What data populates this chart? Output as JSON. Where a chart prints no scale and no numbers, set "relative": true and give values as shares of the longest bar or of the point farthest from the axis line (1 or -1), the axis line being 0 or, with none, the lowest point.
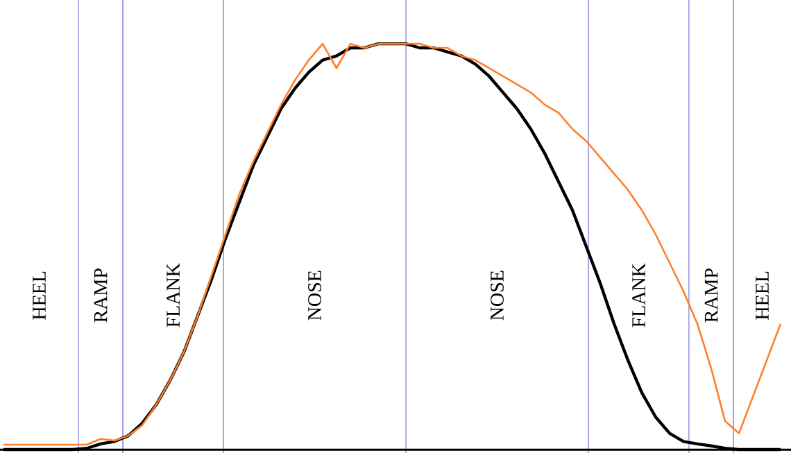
{
  "chart_data": {
    "type": "line",
    "relative": true,
    "grid": "x",
    "marker": "none",
    "line_style": "solid",
    "categories": [
      null,
      null,
      null,
      null,
      null,
      null,
      null,
      null,
      null,
      null,
      null,
      null,
      null,
      null,
      null,
      null,
      null,
      null,
      null,
      null,
      null,
      null,
      null,
      null,
      null,
      null,
      null,
      null,
      null,
      null,
      null,
      null,
      null,
      null,
      null,
      null,
      null,
      null,
      null,
      null,
      null,
      null,
      null,
      null,
      null,
      null,
      null,
      null,
      null,
      null,
      null,
      null,
      null,
      null,
      null,
      null,
      null
    ],
    "series": [
      {
        "color": "#000000",
        "values": [
          0,
          0,
          0,
          0,
          0,
          0,
          0.003,
          0.014,
          0.02,
          0.034,
          0.065,
          0.11,
          0.17,
          0.24,
          0.33,
          0.42,
          0.52,
          0.61,
          0.7,
          0.77,
          0.84,
          0.89,
          0.93,
          0.96,
          0.97,
          0.99,
          0.99,
          1.0,
          1.0,
          1.0,
          0.99,
          0.99,
          0.98,
          0.97,
          0.95,
          0.92,
          0.88,
          0.84,
          0.79,
          0.73,
          0.66,
          0.59,
          0.5,
          0.41,
          0.31,
          0.22,
          0.14,
          0.08,
          0.04,
          0.02,
          0.014,
          0.009,
          0.003,
          0,
          0,
          0,
          0
        ]
      },
      {
        "color": "#ff7f2a",
        "values": [
          0.012,
          0.012,
          0.012,
          0.012,
          0.012,
          0.012,
          0.012,
          0.026,
          0.022,
          0.034,
          0.06,
          0.11,
          0.17,
          0.24,
          0.33,
          0.43,
          0.53,
          0.63,
          0.71,
          0.78,
          0.85,
          0.91,
          0.96,
          1.0,
          0.94,
          1.0,
          0.99,
          1.0,
          1.0,
          1.0,
          1.0,
          0.99,
          0.99,
          0.97,
          0.96,
          0.94,
          0.92,
          0.9,
          0.88,
          0.85,
          0.83,
          0.79,
          0.76,
          0.72,
          0.68,
          0.64,
          0.59,
          0.53,
          0.46,
          0.39,
          0.31,
          0.2,
          0.07,
          0.04,
          0.13,
          0.22,
          0.31
        ]
      }
    ],
    "annotations": [
      "HEEL",
      "RAMP",
      "FLANK",
      "NOSE",
      "NOSE",
      "FLANK",
      "RAMP",
      "HEEL"
    ]
  }
}
